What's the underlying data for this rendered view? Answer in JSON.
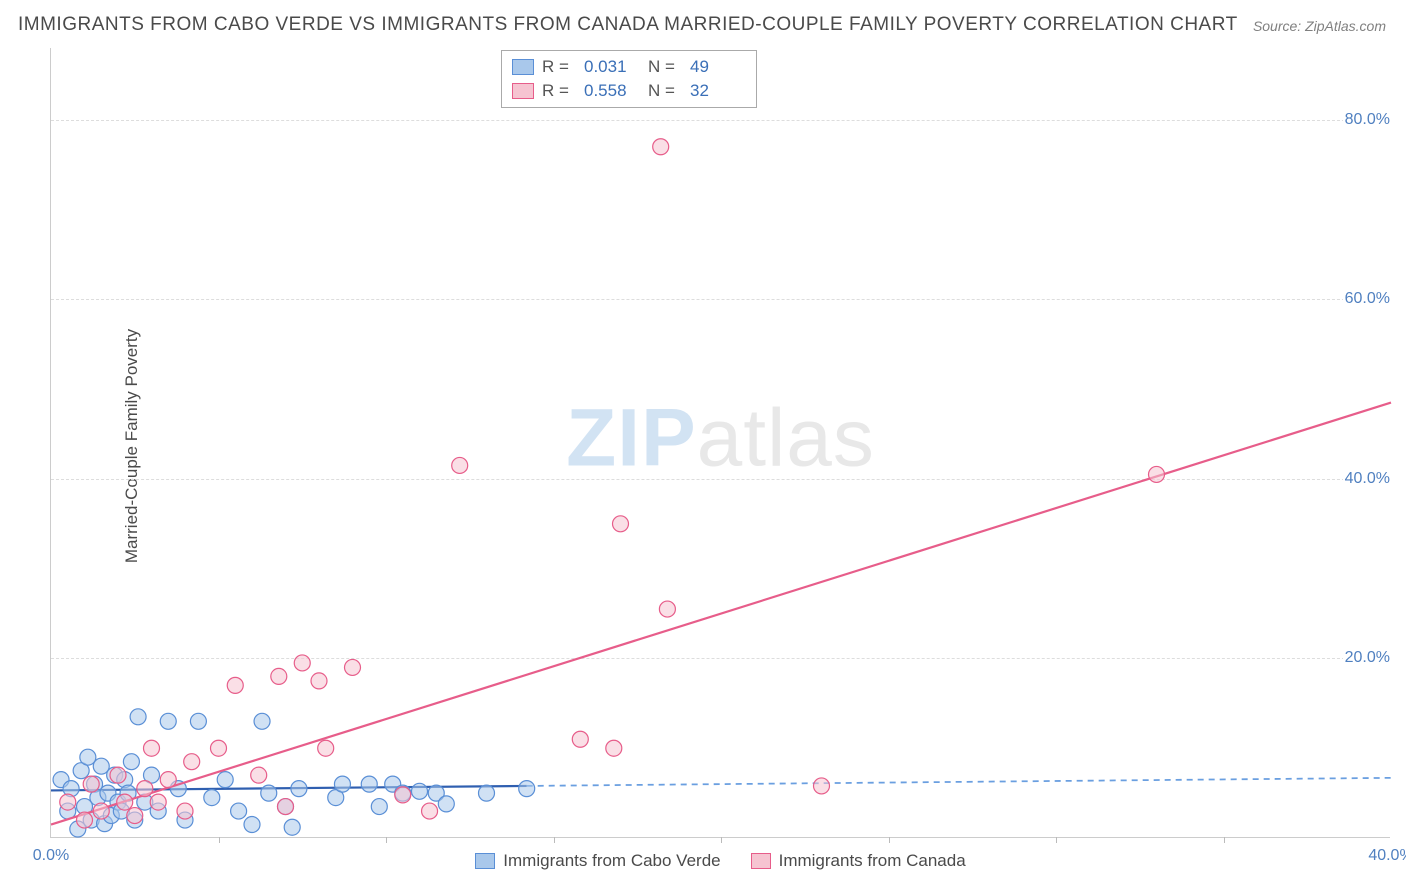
{
  "title": "IMMIGRANTS FROM CABO VERDE VS IMMIGRANTS FROM CANADA MARRIED-COUPLE FAMILY POVERTY CORRELATION CHART",
  "source": "Source: ZipAtlas.com",
  "ylabel": "Married-Couple Family Poverty",
  "watermark_a": "ZIP",
  "watermark_b": "atlas",
  "chart": {
    "type": "scatter",
    "xlim": [
      0,
      40
    ],
    "ylim": [
      0,
      88
    ],
    "grid_y": [
      20,
      40,
      60,
      80
    ],
    "grid_color": "#dddddd",
    "y_ticks_right": [
      {
        "v": 20,
        "label": "20.0%"
      },
      {
        "v": 40,
        "label": "40.0%"
      },
      {
        "v": 60,
        "label": "60.0%"
      },
      {
        "v": 80,
        "label": "80.0%"
      }
    ],
    "x_ticks": [
      {
        "v": 0,
        "label": "0.0%"
      },
      {
        "v": 40,
        "label": "40.0%"
      }
    ],
    "x_minor_ticks": [
      5,
      10,
      15,
      20,
      25,
      30,
      35
    ],
    "tick_label_color": "#5080c0",
    "series": [
      {
        "name": "Immigrants from Cabo Verde",
        "fill": "#a9c8eb",
        "stroke": "#5a8fd6",
        "fill_opacity": 0.55,
        "marker_r": 8,
        "R": "0.031",
        "N": "49",
        "trend": {
          "color": "#2f5fb0",
          "width": 2.2,
          "dash": "",
          "x1": 0,
          "y1": 5.3,
          "x2": 14.2,
          "y2": 5.8,
          "ext_color": "#6a9fe0",
          "ext_dash": "6,5",
          "ext_x1": 14.2,
          "ext_y1": 5.8,
          "ext_x2": 40,
          "ext_y2": 6.7
        },
        "points": [
          [
            0.3,
            6.5
          ],
          [
            0.5,
            3.0
          ],
          [
            0.6,
            5.5
          ],
          [
            0.8,
            1.0
          ],
          [
            0.9,
            7.5
          ],
          [
            1.0,
            3.5
          ],
          [
            1.1,
            9.0
          ],
          [
            1.2,
            2.0
          ],
          [
            1.3,
            6.0
          ],
          [
            1.4,
            4.5
          ],
          [
            1.5,
            8.0
          ],
          [
            1.6,
            1.6
          ],
          [
            1.7,
            5.0
          ],
          [
            1.8,
            2.5
          ],
          [
            1.9,
            7.0
          ],
          [
            2.0,
            4.0
          ],
          [
            2.1,
            3.0
          ],
          [
            2.2,
            6.5
          ],
          [
            2.3,
            5.0
          ],
          [
            2.4,
            8.5
          ],
          [
            2.5,
            2.0
          ],
          [
            2.6,
            13.5
          ],
          [
            2.8,
            4.0
          ],
          [
            3.0,
            7.0
          ],
          [
            3.2,
            3.0
          ],
          [
            3.5,
            13.0
          ],
          [
            3.8,
            5.5
          ],
          [
            4.0,
            2.0
          ],
          [
            4.4,
            13.0
          ],
          [
            4.8,
            4.5
          ],
          [
            5.2,
            6.5
          ],
          [
            5.6,
            3.0
          ],
          [
            6.0,
            1.5
          ],
          [
            6.3,
            13.0
          ],
          [
            6.5,
            5.0
          ],
          [
            7.0,
            3.5
          ],
          [
            7.2,
            1.2
          ],
          [
            7.4,
            5.5
          ],
          [
            8.5,
            4.5
          ],
          [
            8.7,
            6.0
          ],
          [
            9.5,
            6.0
          ],
          [
            9.8,
            3.5
          ],
          [
            10.2,
            6.0
          ],
          [
            10.5,
            5.0
          ],
          [
            11.0,
            5.2
          ],
          [
            11.5,
            5.0
          ],
          [
            11.8,
            3.8
          ],
          [
            13.0,
            5.0
          ],
          [
            14.2,
            5.5
          ]
        ]
      },
      {
        "name": "Immigrants from Canada",
        "fill": "#f6c4d1",
        "stroke": "#e75d8a",
        "fill_opacity": 0.55,
        "marker_r": 8,
        "R": "0.558",
        "N": "32",
        "trend": {
          "color": "#e75d8a",
          "width": 2.2,
          "dash": "",
          "x1": 0,
          "y1": 1.5,
          "x2": 40,
          "y2": 48.5
        },
        "points": [
          [
            0.5,
            4.0
          ],
          [
            1.0,
            2.0
          ],
          [
            1.2,
            6.0
          ],
          [
            1.5,
            3.0
          ],
          [
            2.0,
            7.0
          ],
          [
            2.2,
            4.0
          ],
          [
            2.5,
            2.5
          ],
          [
            2.8,
            5.5
          ],
          [
            3.0,
            10.0
          ],
          [
            3.2,
            4.0
          ],
          [
            3.5,
            6.5
          ],
          [
            4.0,
            3.0
          ],
          [
            4.2,
            8.5
          ],
          [
            5.0,
            10.0
          ],
          [
            5.5,
            17.0
          ],
          [
            6.2,
            7.0
          ],
          [
            6.8,
            18.0
          ],
          [
            7.0,
            3.5
          ],
          [
            7.5,
            19.5
          ],
          [
            8.0,
            17.5
          ],
          [
            8.2,
            10.0
          ],
          [
            9.0,
            19.0
          ],
          [
            10.5,
            4.8
          ],
          [
            11.3,
            3.0
          ],
          [
            12.2,
            41.5
          ],
          [
            15.8,
            11.0
          ],
          [
            16.8,
            10.0
          ],
          [
            17.0,
            35.0
          ],
          [
            18.2,
            77.0
          ],
          [
            18.4,
            25.5
          ],
          [
            23.0,
            5.8
          ],
          [
            33.0,
            40.5
          ]
        ]
      }
    ],
    "legend_top": [
      {
        "fill": "#a9c8eb",
        "stroke": "#5a8fd6",
        "R_label": "R =",
        "R_val": "0.031",
        "N_label": "N =",
        "N_val": "49"
      },
      {
        "fill": "#f6c4d1",
        "stroke": "#e75d8a",
        "R_label": "R =",
        "R_val": "0.558",
        "N_label": "N =",
        "N_val": "32"
      }
    ],
    "legend_bottom": [
      {
        "fill": "#a9c8eb",
        "stroke": "#5a8fd6",
        "label": "Immigrants from Cabo Verde"
      },
      {
        "fill": "#f6c4d1",
        "stroke": "#e75d8a",
        "label": "Immigrants from Canada"
      }
    ]
  }
}
